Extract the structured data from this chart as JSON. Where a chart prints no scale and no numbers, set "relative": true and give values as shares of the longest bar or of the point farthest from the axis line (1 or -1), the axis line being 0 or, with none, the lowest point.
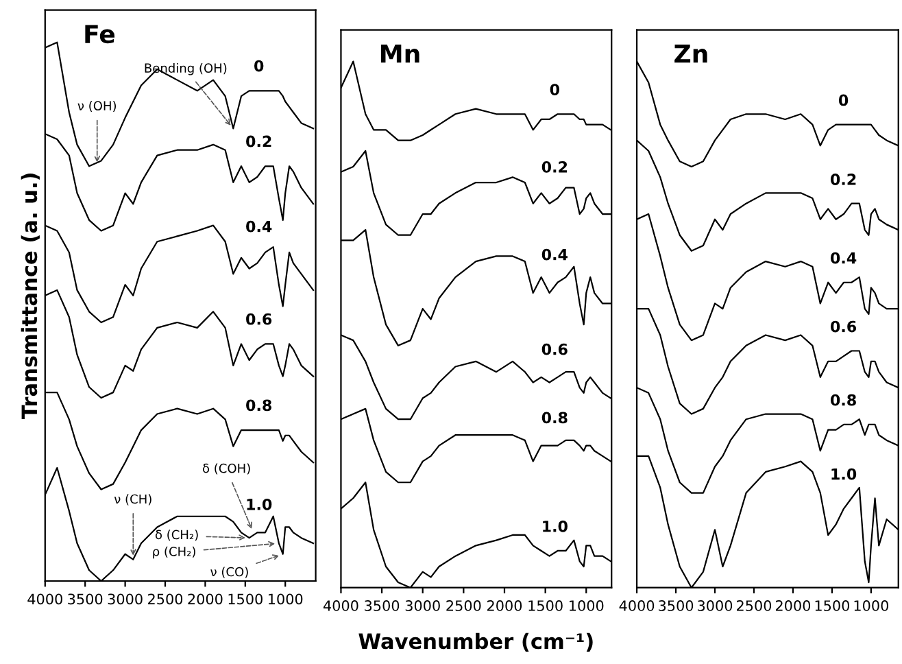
{
  "chart_data": [
    {
      "type": "line",
      "title": "Fe",
      "ylabel": "Transmittance (a. u.)",
      "relative": true,
      "xlim": [
        4000,
        620
      ],
      "xticks": [
        4000,
        3500,
        3000,
        2500,
        2000,
        1500,
        1000
      ],
      "grid": false,
      "legend": false,
      "line_style": "solid",
      "marker": "none",
      "x": [
        4000,
        3850,
        3700,
        3600,
        3450,
        3300,
        3150,
        3000,
        2900,
        2800,
        2600,
        2350,
        2100,
        1900,
        1750,
        1650,
        1550,
        1450,
        1350,
        1250,
        1150,
        1080,
        1030,
        1000,
        950,
        900,
        800,
        650
      ],
      "series": [
        {
          "name": "0",
          "color": "#000000",
          "values": [
            0.99,
            1.0,
            0.87,
            0.81,
            0.77,
            0.78,
            0.81,
            0.86,
            0.89,
            0.92,
            0.95,
            0.93,
            0.91,
            0.93,
            0.9,
            0.84,
            0.9,
            0.91,
            0.91,
            0.91,
            0.91,
            0.91,
            0.9,
            0.89,
            0.88,
            0.87,
            0.85,
            0.84
          ]
        },
        {
          "name": "0.2",
          "color": "#000000",
          "values": [
            0.83,
            0.82,
            0.79,
            0.72,
            0.67,
            0.65,
            0.66,
            0.72,
            0.7,
            0.74,
            0.79,
            0.8,
            0.8,
            0.81,
            0.8,
            0.74,
            0.77,
            0.74,
            0.75,
            0.77,
            0.77,
            0.71,
            0.67,
            0.72,
            0.77,
            0.76,
            0.73,
            0.7
          ]
        },
        {
          "name": "0.4",
          "color": "#000000",
          "values": [
            0.66,
            0.65,
            0.61,
            0.54,
            0.5,
            0.48,
            0.49,
            0.55,
            0.53,
            0.58,
            0.63,
            0.64,
            0.65,
            0.66,
            0.63,
            0.57,
            0.6,
            0.58,
            0.59,
            0.61,
            0.62,
            0.55,
            0.51,
            0.55,
            0.61,
            0.59,
            0.57,
            0.54
          ]
        },
        {
          "name": "0.6",
          "color": "#000000",
          "values": [
            0.53,
            0.54,
            0.49,
            0.42,
            0.36,
            0.34,
            0.35,
            0.4,
            0.39,
            0.43,
            0.47,
            0.48,
            0.47,
            0.5,
            0.47,
            0.4,
            0.44,
            0.41,
            0.43,
            0.44,
            0.44,
            0.4,
            0.38,
            0.4,
            0.44,
            0.43,
            0.4,
            0.38
          ]
        },
        {
          "name": "0.8",
          "color": "#000000",
          "values": [
            0.35,
            0.35,
            0.3,
            0.25,
            0.2,
            0.17,
            0.18,
            0.22,
            0.25,
            0.28,
            0.31,
            0.32,
            0.31,
            0.32,
            0.3,
            0.25,
            0.28,
            0.28,
            0.28,
            0.28,
            0.28,
            0.28,
            0.26,
            0.27,
            0.27,
            0.26,
            0.24,
            0.22
          ]
        },
        {
          "name": "1.0",
          "color": "#000000",
          "values": [
            0.16,
            0.21,
            0.13,
            0.07,
            0.02,
            0,
            0.02,
            0.05,
            0.04,
            0.07,
            0.1,
            0.12,
            0.12,
            0.12,
            0.12,
            0.11,
            0.09,
            0.08,
            0.09,
            0.09,
            0.12,
            0.07,
            0.05,
            0.1,
            0.1,
            0.09,
            0.08,
            0.07
          ]
        }
      ],
      "annotations": [
        {
          "text": "ν (OH)",
          "x": 3350,
          "y": 0.77
        },
        {
          "text": "Bending (OH)",
          "x": 1650,
          "y": 0.84
        },
        {
          "text": "ν (CH)",
          "x": 2900,
          "y": 0.04
        },
        {
          "text": "δ (COH)",
          "x": 1400,
          "y": 0.09
        },
        {
          "text": "δ (CH₂)",
          "x": 1450,
          "y": 0.08
        },
        {
          "text": "ρ (CH₂)",
          "x": 1080,
          "y": 0.07
        },
        {
          "text": "ν (CO)",
          "x": 1030,
          "y": 0.05
        }
      ]
    },
    {
      "type": "line",
      "title": "Mn",
      "xlabel": "Wavenumber (cm⁻¹)",
      "relative": true,
      "xlim": [
        4000,
        690
      ],
      "xticks": [
        4000,
        3500,
        3000,
        2500,
        2000,
        1500,
        1000
      ],
      "grid": false,
      "legend": false,
      "line_style": "solid",
      "marker": "none",
      "x": [
        4000,
        3850,
        3700,
        3600,
        3450,
        3300,
        3150,
        3000,
        2900,
        2800,
        2600,
        2350,
        2100,
        1900,
        1750,
        1650,
        1550,
        1450,
        1350,
        1250,
        1150,
        1080,
        1030,
        1000,
        950,
        900,
        800,
        700
      ],
      "series": [
        {
          "name": "0",
          "color": "#000000",
          "values": [
            0.95,
            1.0,
            0.9,
            0.87,
            0.87,
            0.85,
            0.85,
            0.86,
            0.87,
            0.88,
            0.9,
            0.91,
            0.9,
            0.9,
            0.9,
            0.87,
            0.89,
            0.89,
            0.9,
            0.9,
            0.9,
            0.89,
            0.89,
            0.88,
            0.88,
            0.88,
            0.88,
            0.87
          ]
        },
        {
          "name": "0.2",
          "color": "#000000",
          "values": [
            0.79,
            0.8,
            0.83,
            0.75,
            0.69,
            0.67,
            0.67,
            0.71,
            0.71,
            0.73,
            0.75,
            0.77,
            0.77,
            0.78,
            0.77,
            0.73,
            0.75,
            0.73,
            0.74,
            0.76,
            0.76,
            0.71,
            0.72,
            0.74,
            0.75,
            0.73,
            0.71,
            0.71
          ]
        },
        {
          "name": "0.4",
          "color": "#000000",
          "values": [
            0.66,
            0.66,
            0.68,
            0.59,
            0.5,
            0.46,
            0.47,
            0.53,
            0.51,
            0.55,
            0.59,
            0.62,
            0.63,
            0.63,
            0.62,
            0.56,
            0.59,
            0.56,
            0.58,
            0.59,
            0.61,
            0.54,
            0.5,
            0.56,
            0.59,
            0.56,
            0.54,
            0.54
          ]
        },
        {
          "name": "0.6",
          "color": "#000000",
          "values": [
            0.48,
            0.47,
            0.43,
            0.39,
            0.34,
            0.32,
            0.32,
            0.36,
            0.37,
            0.39,
            0.42,
            0.43,
            0.41,
            0.43,
            0.41,
            0.39,
            0.4,
            0.39,
            0.4,
            0.41,
            0.41,
            0.38,
            0.37,
            0.39,
            0.4,
            0.39,
            0.37,
            0.36
          ]
        },
        {
          "name": "0.8",
          "color": "#000000",
          "values": [
            0.32,
            0.33,
            0.34,
            0.28,
            0.22,
            0.2,
            0.2,
            0.24,
            0.25,
            0.27,
            0.29,
            0.29,
            0.29,
            0.29,
            0.28,
            0.24,
            0.27,
            0.27,
            0.27,
            0.28,
            0.28,
            0.27,
            0.26,
            0.27,
            0.27,
            0.26,
            0.25,
            0.24
          ]
        },
        {
          "name": "1.0",
          "color": "#000000",
          "values": [
            0.15,
            0.17,
            0.2,
            0.11,
            0.04,
            0.01,
            0,
            0.03,
            0.02,
            0.04,
            0.06,
            0.08,
            0.09,
            0.1,
            0.1,
            0.08,
            0.07,
            0.06,
            0.07,
            0.07,
            0.09,
            0.05,
            0.04,
            0.08,
            0.08,
            0.06,
            0.06,
            0.05
          ]
        }
      ]
    },
    {
      "type": "line",
      "title": "Zn",
      "relative": true,
      "xlim": [
        4000,
        650
      ],
      "xticks": [
        4000,
        3500,
        3000,
        2500,
        2000,
        1500,
        1000
      ],
      "grid": false,
      "legend": false,
      "line_style": "solid",
      "marker": "none",
      "x": [
        4000,
        3850,
        3700,
        3600,
        3450,
        3300,
        3150,
        3000,
        2900,
        2800,
        2600,
        2350,
        2100,
        1900,
        1750,
        1650,
        1550,
        1450,
        1350,
        1250,
        1150,
        1080,
        1030,
        1000,
        950,
        900,
        800,
        650
      ],
      "series": [
        {
          "name": "0",
          "color": "#000000",
          "values": [
            1.0,
            0.96,
            0.88,
            0.85,
            0.81,
            0.8,
            0.81,
            0.85,
            0.87,
            0.89,
            0.9,
            0.9,
            0.89,
            0.9,
            0.88,
            0.84,
            0.87,
            0.88,
            0.88,
            0.88,
            0.88,
            0.88,
            0.88,
            0.88,
            0.87,
            0.86,
            0.85,
            0.84
          ]
        },
        {
          "name": "0.2",
          "color": "#000000",
          "values": [
            0.85,
            0.83,
            0.78,
            0.73,
            0.67,
            0.64,
            0.65,
            0.7,
            0.68,
            0.71,
            0.73,
            0.75,
            0.75,
            0.75,
            0.74,
            0.7,
            0.72,
            0.7,
            0.71,
            0.73,
            0.73,
            0.68,
            0.67,
            0.71,
            0.72,
            0.7,
            0.69,
            0.68
          ]
        },
        {
          "name": "0.4",
          "color": "#000000",
          "values": [
            0.7,
            0.71,
            0.63,
            0.57,
            0.5,
            0.47,
            0.48,
            0.54,
            0.53,
            0.57,
            0.6,
            0.62,
            0.61,
            0.62,
            0.61,
            0.54,
            0.58,
            0.56,
            0.58,
            0.58,
            0.59,
            0.53,
            0.52,
            0.57,
            0.56,
            0.54,
            0.53,
            0.53
          ]
        },
        {
          "name": "0.6",
          "color": "#000000",
          "values": [
            0.53,
            0.53,
            0.48,
            0.42,
            0.35,
            0.33,
            0.34,
            0.38,
            0.4,
            0.43,
            0.46,
            0.48,
            0.47,
            0.48,
            0.46,
            0.4,
            0.43,
            0.43,
            0.44,
            0.45,
            0.45,
            0.41,
            0.4,
            0.43,
            0.43,
            0.41,
            0.39,
            0.38
          ]
        },
        {
          "name": "0.8",
          "color": "#000000",
          "values": [
            0.38,
            0.37,
            0.32,
            0.26,
            0.2,
            0.18,
            0.18,
            0.23,
            0.25,
            0.28,
            0.32,
            0.33,
            0.33,
            0.33,
            0.32,
            0.26,
            0.3,
            0.3,
            0.31,
            0.31,
            0.32,
            0.29,
            0.31,
            0.31,
            0.31,
            0.29,
            0.28,
            0.27
          ]
        },
        {
          "name": "1.0",
          "color": "#000000",
          "values": [
            0.25,
            0.25,
            0.19,
            0.12,
            0.04,
            0,
            0.03,
            0.11,
            0.04,
            0.08,
            0.18,
            0.22,
            0.23,
            0.24,
            0.22,
            0.18,
            0.1,
            0.12,
            0.15,
            0.17,
            0.19,
            0.05,
            0.01,
            0.08,
            0.17,
            0.08,
            0.13,
            0.11
          ]
        }
      ]
    }
  ]
}
